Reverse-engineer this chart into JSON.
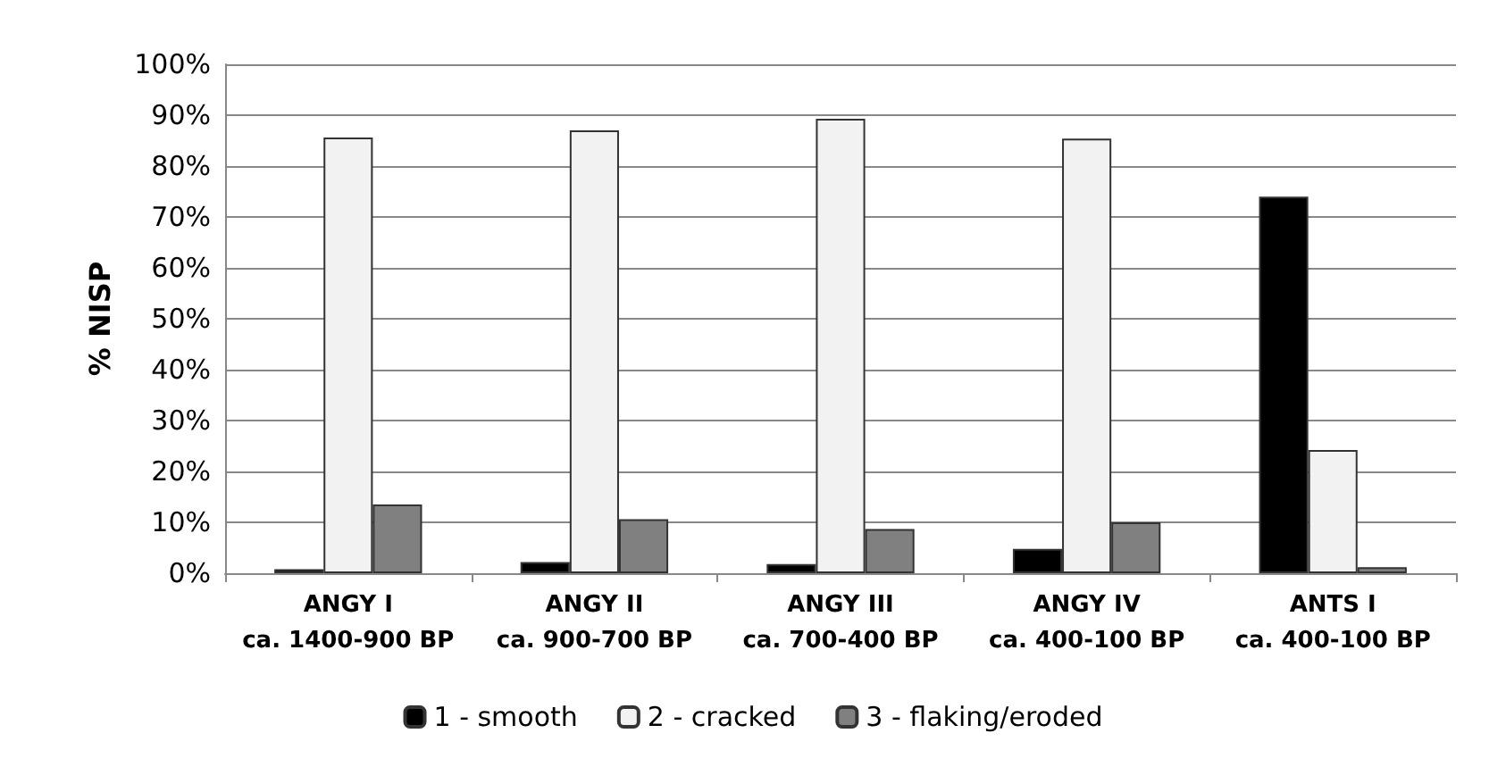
{
  "chart_data": {
    "type": "bar",
    "ylabel": "% NISP",
    "categories": [
      "ANGY I\nca. 1400-900 BP",
      "ANGY II\nca. 900-700 BP",
      "ANGY III\nca. 700-400 BP",
      "ANGY IV\nca. 400-100 BP",
      "ANTS I\nca. 400-100 BP"
    ],
    "series": [
      {
        "name": "1 - smooth",
        "color": "#000000",
        "values": [
          0.8,
          2.2,
          1.8,
          4.8,
          74
        ]
      },
      {
        "name": "2 - cracked",
        "color": "#f2f2f2",
        "values": [
          85.6,
          87,
          89.3,
          85.4,
          24.2
        ]
      },
      {
        "name": "3 - flaking/eroded",
        "color": "#808080",
        "values": [
          13.5,
          10.6,
          8.7,
          10,
          1.2
        ]
      }
    ],
    "ylim": [
      0,
      100
    ],
    "yticks": [
      {
        "value": 0,
        "label": "0%"
      },
      {
        "value": 10,
        "label": "10%"
      },
      {
        "value": 20,
        "label": "20%"
      },
      {
        "value": 30,
        "label": "30%"
      },
      {
        "value": 40,
        "label": "40%"
      },
      {
        "value": 50,
        "label": "50%"
      },
      {
        "value": 60,
        "label": "60%"
      },
      {
        "value": 70,
        "label": "70%"
      },
      {
        "value": 80,
        "label": "80%"
      },
      {
        "value": 90,
        "label": "90%"
      },
      {
        "value": 100,
        "label": "100%"
      }
    ],
    "grid": "y",
    "legend": "bottom"
  }
}
